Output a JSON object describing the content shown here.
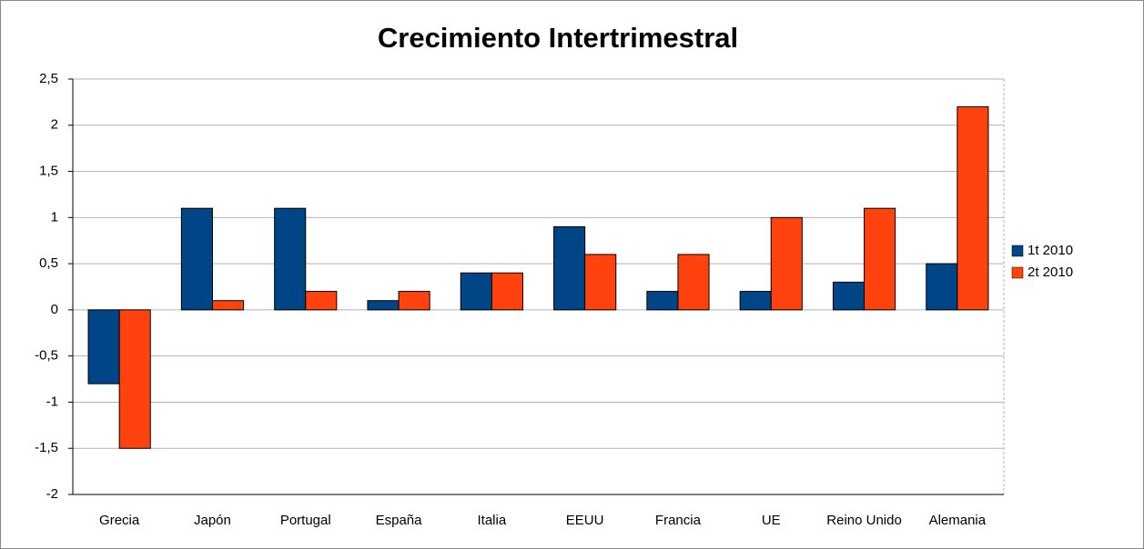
{
  "chart_data": {
    "type": "bar",
    "title": "Crecimiento Intertrimestral",
    "categories": [
      "Grecia",
      "Japón",
      "Portugal",
      "España",
      "Italia",
      "EEUU",
      "Francia",
      "UE",
      "Reino Unido",
      "Alemania"
    ],
    "series": [
      {
        "name": "1t 2010",
        "color": "#004586",
        "values": [
          -0.8,
          1.1,
          1.1,
          0.1,
          0.4,
          0.9,
          0.2,
          0.2,
          0.3,
          0.5
        ]
      },
      {
        "name": "2t 2010",
        "color": "#ff420e",
        "values": [
          -1.5,
          0.1,
          0.2,
          0.2,
          0.4,
          0.6,
          0.6,
          1.0,
          1.1,
          2.2
        ]
      }
    ],
    "ylim": [
      -2,
      2.5
    ],
    "yticks": [
      -2,
      {
        "value": -1.5,
        "label": "-1,5"
      },
      -1,
      {
        "value": -0.5,
        "label": "-0,5"
      },
      0,
      {
        "value": 0.5,
        "label": "0,5"
      },
      1,
      {
        "value": 1.5,
        "label": "1,5"
      },
      2,
      {
        "value": 2.5,
        "label": "2,5"
      }
    ],
    "grid": true,
    "legend": "right"
  }
}
